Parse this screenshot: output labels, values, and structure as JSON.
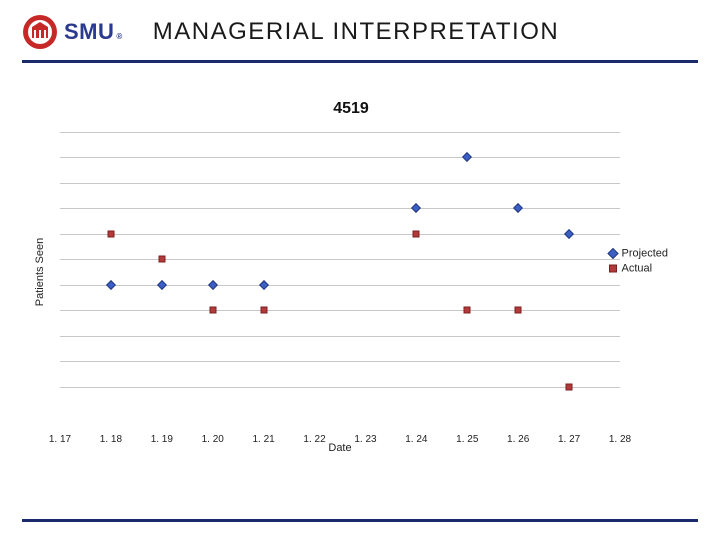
{
  "header": {
    "logo_text": "SMU",
    "logo_tm": "®",
    "title": "MANAGERIAL INTERPRETATION",
    "logo_seal_ring_color": "#c62828",
    "logo_seal_inner_color": "#ffffff",
    "logo_text_color": "#2a3a8f",
    "rule_color": "#1b2a6b"
  },
  "chart": {
    "type": "scatter",
    "title": "4519",
    "title_fontsize": 16,
    "xlabel": "Date",
    "ylabel": "Patients Seen",
    "label_fontsize": 11,
    "background": "#ffffff",
    "grid_color": "#c8c8c8",
    "xlim": [
      1.17,
      1.28
    ],
    "ylim": [
      0,
      11
    ],
    "gridlines_y": [
      1,
      2,
      3,
      4,
      5,
      6,
      7,
      8,
      9,
      10,
      11
    ],
    "xticks": [
      1.17,
      1.18,
      1.19,
      1.2,
      1.21,
      1.22,
      1.23,
      1.24,
      1.25,
      1.26,
      1.27,
      1.28
    ],
    "xtick_labels": [
      "1. 17",
      "1. 18",
      "1. 19",
      "1. 20",
      "1. 21",
      "1. 22",
      "1. 23",
      "1. 24",
      "1. 25",
      "1. 26",
      "1. 27",
      "1. 28"
    ],
    "legend": {
      "items": [
        {
          "label": "Projected",
          "marker": "diamond",
          "color": "#3b5fc4",
          "border": "#233a80"
        },
        {
          "label": "Actual",
          "marker": "square",
          "color": "#b23a3a",
          "border": "#7d1f1f"
        }
      ]
    },
    "series": [
      {
        "name": "Projected",
        "marker": "diamond",
        "color": "#3b5fc4",
        "border": "#233a80",
        "marker_size": 7,
        "points": [
          {
            "x": 1.18,
            "y": 5
          },
          {
            "x": 1.19,
            "y": 5
          },
          {
            "x": 1.2,
            "y": 5
          },
          {
            "x": 1.21,
            "y": 5
          },
          {
            "x": 1.24,
            "y": 8
          },
          {
            "x": 1.25,
            "y": 10
          },
          {
            "x": 1.26,
            "y": 8
          },
          {
            "x": 1.27,
            "y": 7
          }
        ]
      },
      {
        "name": "Actual",
        "marker": "square",
        "color": "#b23a3a",
        "border": "#7d1f1f",
        "marker_size": 7,
        "points": [
          {
            "x": 1.18,
            "y": 7
          },
          {
            "x": 1.19,
            "y": 6
          },
          {
            "x": 1.2,
            "y": 4
          },
          {
            "x": 1.21,
            "y": 4
          },
          {
            "x": 1.24,
            "y": 7
          },
          {
            "x": 1.25,
            "y": 4
          },
          {
            "x": 1.26,
            "y": 4
          },
          {
            "x": 1.27,
            "y": 1
          }
        ]
      }
    ]
  }
}
